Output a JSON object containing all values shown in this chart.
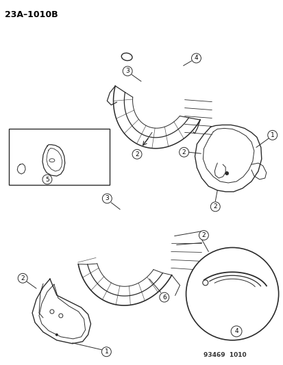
{
  "title": "23A–1010B",
  "background_color": "#ffffff",
  "line_color": "#2a2a2a",
  "text_color": "#000000",
  "fig_width": 4.14,
  "fig_height": 5.33,
  "dpi": 100,
  "watermark": "93469  1010"
}
